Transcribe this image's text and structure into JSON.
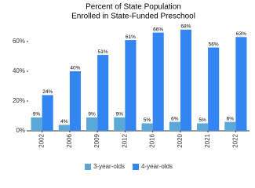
{
  "chart_data": {
    "type": "bar",
    "title": [
      "Percent of State Population",
      "Enrolled in State-Funded Preschool"
    ],
    "categories": [
      "2002",
      "2006",
      "2009",
      "2012",
      "2016",
      "2020",
      "2021",
      "2022"
    ],
    "series": [
      {
        "name": "3-year-olds",
        "color": "#5ba8d8",
        "values": [
          9,
          4,
          9,
          9,
          5,
          6,
          5,
          6
        ],
        "value_labels": [
          "9%",
          "4%",
          "9%",
          "9%",
          "5%",
          "6%",
          "5%",
          "6%"
        ]
      },
      {
        "name": "4-year-olds",
        "color": "#3385f2",
        "values": [
          24,
          40,
          51,
          61,
          66,
          68,
          56,
          63
        ],
        "value_labels": [
          "24%",
          "40%",
          "51%",
          "61%",
          "66%",
          "68%",
          "56%",
          "63%"
        ]
      }
    ],
    "ylim": [
      0,
      70
    ],
    "yticks": [
      {
        "value": 0,
        "label": "0%"
      },
      {
        "value": 20,
        "label": "20%"
      },
      {
        "value": 40,
        "label": "40%"
      },
      {
        "value": 60,
        "label": "60%"
      }
    ],
    "grid": false,
    "legend": "bottom"
  }
}
